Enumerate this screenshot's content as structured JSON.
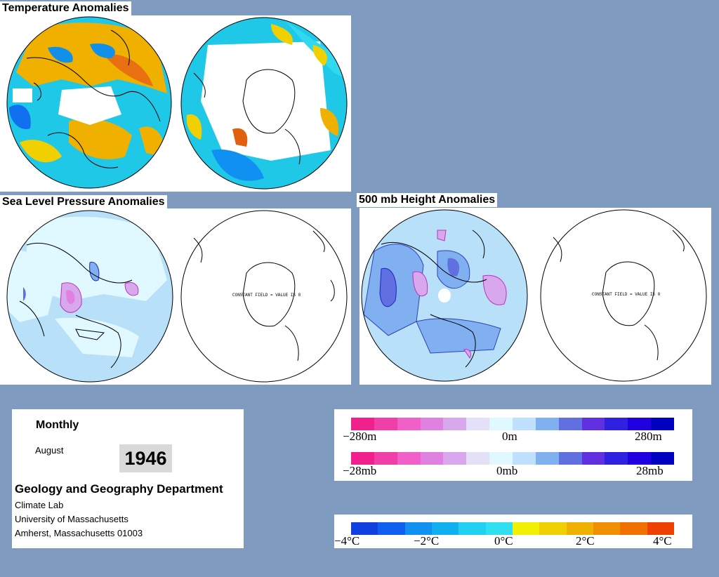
{
  "sections": {
    "temperature": {
      "title": "Temperature Anomalies"
    },
    "slp": {
      "title": "Sea Level Pressure Anomalies",
      "southern_note": "CONSTANT FIELD = VALUE IS 0"
    },
    "height500": {
      "title": "500 mb Height Anomalies",
      "southern_note": "CONSTANT FIELD = VALUE IS 0"
    }
  },
  "info": {
    "period": "Monthly",
    "month": "August",
    "year": "1946",
    "department": "Geology and Geography Department",
    "lab": "Climate Lab",
    "university": "University of Massachusetts",
    "address": "Amherst, Massachusetts 01003"
  },
  "legends": {
    "height": {
      "left": "−280m",
      "center": "0m",
      "right": "280m"
    },
    "pressure": {
      "left": "−28mb",
      "center": "0mb",
      "right": "28mb"
    },
    "temperature": {
      "labels": [
        "−4°C",
        "−2°C",
        "0°C",
        "2°C",
        "4°C"
      ]
    }
  },
  "colors": {
    "background": "#7f9bbf",
    "anomaly_scale": [
      "#f0208c",
      "#f040a8",
      "#f060c8",
      "#e080e0",
      "#d8a8ec",
      "#e4e0f8",
      "#e0f8ff",
      "#c0e0ff",
      "#80b0f0",
      "#6070e0",
      "#6030e0",
      "#3020e0",
      "#2000e0",
      "#0000c0"
    ],
    "temperature_scale": [
      "#1040e0",
      "#1060f0",
      "#1090f0",
      "#10b0f0",
      "#20d0f0",
      "#30e0f0",
      "#f0f000",
      "#f0d000",
      "#f0b000",
      "#f09000",
      "#f07000",
      "#f04000"
    ]
  }
}
